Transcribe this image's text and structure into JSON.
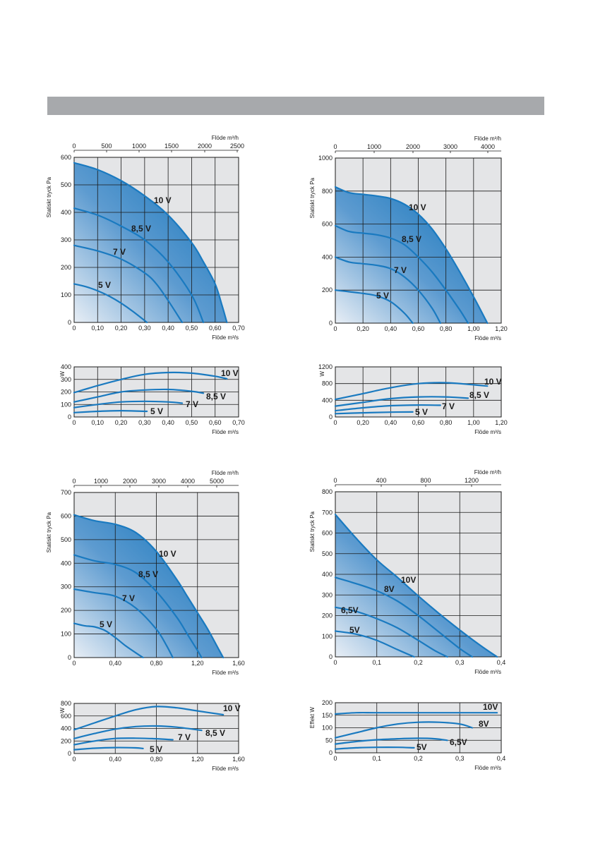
{
  "header": {
    "color": "#a7a9ac"
  },
  "colors": {
    "curve": "#1a7ac0",
    "fill_dark": "#0a6fb8",
    "fill_light": "#e8eef5",
    "plot_bg": "#e4e5e7",
    "grid": "#1a1a1a"
  },
  "chart_data": [
    {
      "type": "line",
      "ylabel": "Statiskt tryck Pa",
      "xlabel": "Flöde m³/s",
      "x2label": "Flöde m³/h",
      "xlim": [
        0,
        0.7
      ],
      "ylim": [
        0,
        600
      ],
      "xticks": [
        "0",
        "0,10",
        "0,20",
        "0,30",
        "0,40",
        "0,50",
        "0,60",
        "0,70"
      ],
      "x2ticks": [
        "0",
        "500",
        "1000",
        "1500",
        "2000",
        "2500"
      ],
      "yticks": [
        "0",
        "100",
        "200",
        "300",
        "400",
        "500",
        "600"
      ],
      "series": [
        {
          "name": "10 V",
          "x": [
            0,
            0.1,
            0.2,
            0.3,
            0.4,
            0.5,
            0.55,
            0.6,
            0.63,
            0.65
          ],
          "y": [
            580,
            555,
            515,
            460,
            390,
            290,
            220,
            140,
            60,
            0
          ]
        },
        {
          "name": "8,5 V",
          "x": [
            0,
            0.1,
            0.2,
            0.3,
            0.4,
            0.5,
            0.55
          ],
          "y": [
            415,
            390,
            350,
            300,
            220,
            100,
            0
          ]
        },
        {
          "name": "7 V",
          "x": [
            0,
            0.1,
            0.2,
            0.3,
            0.35,
            0.4,
            0.46
          ],
          "y": [
            280,
            260,
            230,
            180,
            140,
            80,
            0
          ]
        },
        {
          "name": "5 V",
          "x": [
            0,
            0.05,
            0.1,
            0.15,
            0.2,
            0.25,
            0.31
          ],
          "y": [
            140,
            130,
            115,
            95,
            70,
            40,
            0
          ]
        }
      ]
    },
    {
      "type": "line",
      "ylabel": "W",
      "xlabel": "Flöde m³/s",
      "xlim": [
        0,
        0.7
      ],
      "ylim": [
        0,
        400
      ],
      "xticks": [
        "0",
        "0,10",
        "0,20",
        "0,30",
        "0,40",
        "0,50",
        "0,60",
        "0,70"
      ],
      "yticks": [
        "0",
        "100",
        "200",
        "300",
        "400"
      ],
      "series": [
        {
          "name": "10 V",
          "x": [
            0,
            0.1,
            0.2,
            0.3,
            0.4,
            0.5,
            0.6,
            0.65
          ],
          "y": [
            195,
            250,
            300,
            340,
            355,
            350,
            325,
            305
          ]
        },
        {
          "name": "8,5 V",
          "x": [
            0,
            0.1,
            0.2,
            0.3,
            0.4,
            0.5,
            0.55
          ],
          "y": [
            120,
            160,
            200,
            215,
            220,
            205,
            190
          ]
        },
        {
          "name": "7 V",
          "x": [
            0,
            0.1,
            0.2,
            0.3,
            0.4,
            0.46
          ],
          "y": [
            75,
            100,
            120,
            125,
            120,
            110
          ]
        },
        {
          "name": "5 V",
          "x": [
            0,
            0.1,
            0.2,
            0.31
          ],
          "y": [
            35,
            45,
            50,
            45
          ]
        }
      ]
    },
    {
      "type": "line",
      "ylabel": "Statiskt tryck Pa",
      "xlabel": "Flöde m³/s",
      "x2label": "Flöde m³/h",
      "xlim": [
        0,
        1.2
      ],
      "ylim": [
        0,
        1000
      ],
      "xticks": [
        "0",
        "0,20",
        "0,40",
        "0,60",
        "0,80",
        "1,00",
        "1,20"
      ],
      "x2ticks": [
        "0",
        "1000",
        "2000",
        "3000",
        "4000"
      ],
      "yticks": [
        "0",
        "200",
        "400",
        "600",
        "800",
        "1000"
      ],
      "series": [
        {
          "name": "10 V",
          "x": [
            0,
            0.1,
            0.2,
            0.3,
            0.4,
            0.5,
            0.6,
            0.7,
            0.8,
            0.9,
            1.0,
            1.1
          ],
          "y": [
            825,
            790,
            780,
            770,
            755,
            720,
            660,
            570,
            450,
            310,
            160,
            0
          ]
        },
        {
          "name": "8,5 V",
          "x": [
            0,
            0.1,
            0.2,
            0.3,
            0.4,
            0.5,
            0.6,
            0.7,
            0.8,
            0.9,
            0.96
          ],
          "y": [
            590,
            555,
            545,
            535,
            515,
            475,
            400,
            310,
            200,
            80,
            0
          ]
        },
        {
          "name": "7 V",
          "x": [
            0,
            0.1,
            0.2,
            0.3,
            0.4,
            0.5,
            0.6,
            0.7,
            0.76
          ],
          "y": [
            400,
            370,
            360,
            350,
            330,
            280,
            200,
            90,
            0
          ]
        },
        {
          "name": "5 V",
          "x": [
            0,
            0.1,
            0.2,
            0.3,
            0.4,
            0.5,
            0.56
          ],
          "y": [
            200,
            190,
            180,
            165,
            130,
            60,
            0
          ]
        }
      ]
    },
    {
      "type": "line",
      "ylabel": "W",
      "xlabel": "Flöde m³/s",
      "xlim": [
        0,
        1.2
      ],
      "ylim": [
        0,
        1200
      ],
      "xticks": [
        "0",
        "0,20",
        "0,40",
        "0,60",
        "0,80",
        "1,00",
        "1,20"
      ],
      "yticks": [
        "0",
        "400",
        "800",
        "1200"
      ],
      "series": [
        {
          "name": "10 V",
          "x": [
            0,
            0.2,
            0.4,
            0.6,
            0.8,
            1.0,
            1.1
          ],
          "y": [
            420,
            560,
            700,
            800,
            820,
            770,
            740
          ]
        },
        {
          "name": "8,5 V",
          "x": [
            0,
            0.2,
            0.4,
            0.6,
            0.8,
            0.96
          ],
          "y": [
            260,
            350,
            440,
            480,
            480,
            450
          ]
        },
        {
          "name": "7 V",
          "x": [
            0,
            0.2,
            0.4,
            0.6,
            0.76
          ],
          "y": [
            150,
            220,
            270,
            285,
            280
          ]
        },
        {
          "name": "5 V",
          "x": [
            0,
            0.2,
            0.4,
            0.56
          ],
          "y": [
            80,
            100,
            115,
            120
          ]
        }
      ]
    },
    {
      "type": "line",
      "ylabel": "Statiskt tryck Pa",
      "xlabel": "Flöde m³/s",
      "x2label": "Flöde m³/h",
      "xlim": [
        0,
        1.6
      ],
      "ylim": [
        0,
        700
      ],
      "xticks": [
        "0",
        "0,40",
        "0,80",
        "1,20",
        "1,60"
      ],
      "x2ticks": [
        "0",
        "1000",
        "2000",
        "3000",
        "4000",
        "5000"
      ],
      "yticks": [
        "0",
        "100",
        "200",
        "300",
        "400",
        "500",
        "600",
        "700"
      ],
      "series": [
        {
          "name": "10 V",
          "x": [
            0,
            0.2,
            0.4,
            0.6,
            0.8,
            1.0,
            1.1,
            1.2,
            1.3,
            1.4,
            1.45
          ],
          "y": [
            605,
            580,
            565,
            530,
            450,
            330,
            260,
            190,
            120,
            40,
            0
          ]
        },
        {
          "name": "8,5 V",
          "x": [
            0,
            0.2,
            0.4,
            0.6,
            0.8,
            1.0,
            1.1,
            1.2,
            1.24
          ],
          "y": [
            435,
            410,
            395,
            360,
            280,
            170,
            100,
            30,
            0
          ]
        },
        {
          "name": "7 V",
          "x": [
            0,
            0.2,
            0.4,
            0.6,
            0.8,
            0.9,
            0.96
          ],
          "y": [
            290,
            275,
            260,
            210,
            120,
            50,
            0
          ]
        },
        {
          "name": "5 V",
          "x": [
            0,
            0.1,
            0.2,
            0.3,
            0.4,
            0.5,
            0.6,
            0.67
          ],
          "y": [
            145,
            135,
            130,
            115,
            85,
            50,
            20,
            0
          ]
        }
      ]
    },
    {
      "type": "line",
      "ylabel": "W",
      "xlabel": "Flöde m³/s",
      "xlim": [
        0,
        1.6
      ],
      "ylim": [
        0,
        800
      ],
      "xticks": [
        "0",
        "0,40",
        "0,80",
        "1,20",
        "1,60"
      ],
      "yticks": [
        "0",
        "200",
        "400",
        "600",
        "800"
      ],
      "series": [
        {
          "name": "10 V",
          "x": [
            0,
            0.2,
            0.4,
            0.6,
            0.8,
            1.0,
            1.2,
            1.45
          ],
          "y": [
            380,
            490,
            600,
            700,
            750,
            730,
            680,
            620
          ]
        },
        {
          "name": "8,5 V",
          "x": [
            0,
            0.2,
            0.4,
            0.6,
            0.8,
            1.0,
            1.24
          ],
          "y": [
            240,
            320,
            390,
            430,
            440,
            420,
            370
          ]
        },
        {
          "name": "7 V",
          "x": [
            0,
            0.2,
            0.4,
            0.6,
            0.8,
            0.96
          ],
          "y": [
            140,
            200,
            240,
            245,
            235,
            220
          ]
        },
        {
          "name": "5 V",
          "x": [
            0,
            0.2,
            0.4,
            0.6,
            0.67
          ],
          "y": [
            60,
            85,
            95,
            90,
            80
          ]
        }
      ]
    },
    {
      "type": "line",
      "ylabel": "Statiskt tryck Pa",
      "xlabel": "Flöde m³/s",
      "x2label": "Flöde m³/h",
      "xlim": [
        0,
        0.4
      ],
      "ylim": [
        0,
        800
      ],
      "xticks": [
        "0",
        "0,1",
        "0,2",
        "0,3",
        "0,4"
      ],
      "x2ticks": [
        "0",
        "400",
        "800",
        "1200"
      ],
      "yticks": [
        "0",
        "100",
        "200",
        "300",
        "400",
        "500",
        "600",
        "700",
        "800"
      ],
      "series": [
        {
          "name": "10V",
          "x": [
            0,
            0.05,
            0.1,
            0.15,
            0.2,
            0.25,
            0.3,
            0.35,
            0.39
          ],
          "y": [
            690,
            575,
            470,
            385,
            295,
            210,
            130,
            55,
            0
          ]
        },
        {
          "name": "8V",
          "x": [
            0,
            0.05,
            0.1,
            0.15,
            0.2,
            0.25,
            0.3,
            0.33
          ],
          "y": [
            385,
            355,
            320,
            270,
            200,
            120,
            40,
            0
          ]
        },
        {
          "name": "6,5V",
          "x": [
            0,
            0.05,
            0.1,
            0.15,
            0.2,
            0.24,
            0.27
          ],
          "y": [
            240,
            220,
            185,
            140,
            80,
            30,
            0
          ]
        },
        {
          "name": "5V",
          "x": [
            0,
            0.05,
            0.1,
            0.15,
            0.19
          ],
          "y": [
            125,
            110,
            80,
            35,
            0
          ]
        }
      ]
    },
    {
      "type": "line",
      "ylabel": "Effekt W",
      "xlabel": "Flöde m³/s",
      "xlim": [
        0,
        0.4
      ],
      "ylim": [
        0,
        200
      ],
      "xticks": [
        "0",
        "0,1",
        "0,2",
        "0,3",
        "0,4"
      ],
      "yticks": [
        "0",
        "50",
        "100",
        "150",
        "200"
      ],
      "series": [
        {
          "name": "10V",
          "x": [
            0,
            0.05,
            0.1,
            0.2,
            0.3,
            0.39
          ],
          "y": [
            155,
            160,
            160,
            160,
            160,
            160
          ]
        },
        {
          "name": "8V",
          "x": [
            0,
            0.05,
            0.1,
            0.15,
            0.2,
            0.25,
            0.3,
            0.33
          ],
          "y": [
            60,
            80,
            100,
            115,
            122,
            122,
            115,
            100
          ]
        },
        {
          "name": "6,5V",
          "x": [
            0,
            0.05,
            0.1,
            0.15,
            0.2,
            0.24,
            0.27
          ],
          "y": [
            35,
            45,
            52,
            56,
            58,
            56,
            50
          ]
        },
        {
          "name": "5V",
          "x": [
            0,
            0.05,
            0.1,
            0.15,
            0.19
          ],
          "y": [
            15,
            20,
            22,
            22,
            20
          ]
        }
      ]
    }
  ]
}
